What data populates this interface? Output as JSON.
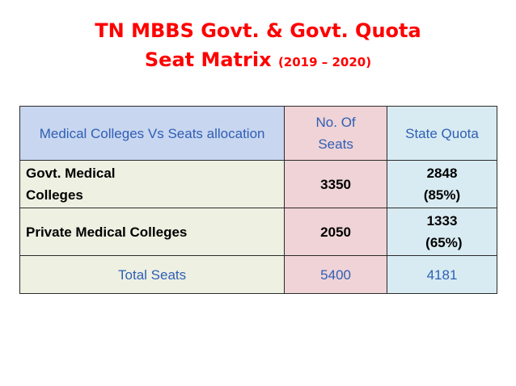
{
  "title": {
    "line1": "TN MBBS Govt. & Govt. Quota",
    "line2": "Seat Matrix",
    "years": "(2019 – 2020)"
  },
  "table": {
    "headers": {
      "category": "Medical Colleges Vs Seats allocation",
      "seats_line1": "No. Of",
      "seats_line2": "Seats",
      "quota": "State Quota"
    },
    "rows": [
      {
        "label_line1": "Govt. Medical",
        "label_line2": "Colleges",
        "seats": "3350",
        "quota_line1": "2848",
        "quota_line2": "(85%)"
      },
      {
        "label_line1": "Private Medical Colleges",
        "label_line2": "",
        "seats": "2050",
        "quota_line1": "1333",
        "quota_line2": " (65%)"
      }
    ],
    "total": {
      "label": "Total Seats",
      "seats": "5400",
      "quota": "4181"
    }
  },
  "colors": {
    "title": "#ff0000",
    "header_blue_text": "#2f5fb4",
    "header_bg": "#c8d6f0",
    "seats_bg": "#efd3d6",
    "quota_bg": "#d8ebf2",
    "label_bg": "#eef0e2"
  }
}
